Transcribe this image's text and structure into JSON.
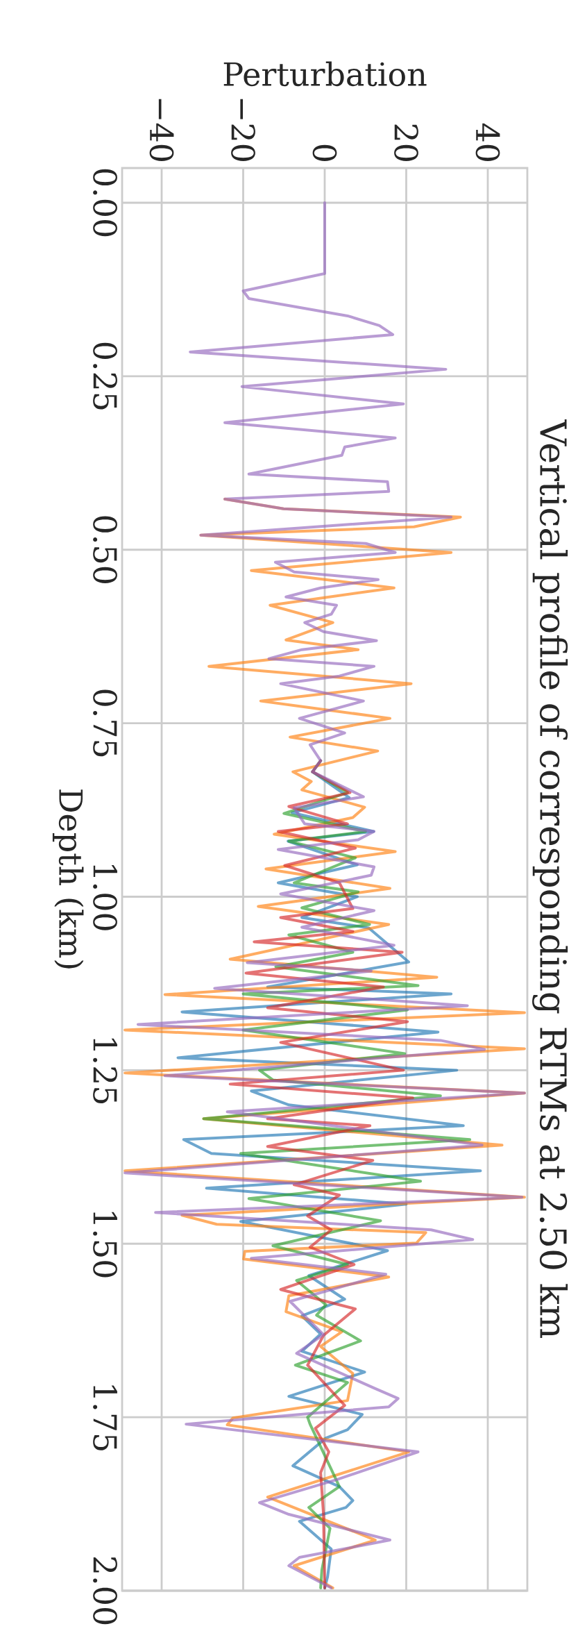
{
  "chart_data": {
    "type": "line",
    "title": "Vertical profile of corresponding RTMs at 2.50 km",
    "xlabel": "Perturbation",
    "ylabel": "Depth (km)",
    "xlim": [
      -49.7,
      49.7
    ],
    "ylim": [
      2.0,
      -0.05
    ],
    "xticks": [
      {
        "value": -40,
        "label": "−40"
      },
      {
        "value": -20,
        "label": "−20"
      },
      {
        "value": 0,
        "label": "0"
      },
      {
        "value": 20,
        "label": "20"
      },
      {
        "value": 40,
        "label": "40"
      }
    ],
    "yticks": [
      {
        "value": 0,
        "label": "0.00"
      },
      {
        "value": 0.25,
        "label": "0.25"
      },
      {
        "value": 0.5,
        "label": "0.50"
      },
      {
        "value": 0.75,
        "label": "0.75"
      },
      {
        "value": 1,
        "label": "1.00"
      },
      {
        "value": 1.25,
        "label": "1.25"
      },
      {
        "value": 1.5,
        "label": "1.50"
      },
      {
        "value": 1.75,
        "label": "1.75"
      },
      {
        "value": 2,
        "label": "2.00"
      }
    ],
    "grid": true,
    "line_style": "solid",
    "marker": "none",
    "series": [
      {
        "color": "#1f77b4",
        "values": [
          null,
          null,
          null,
          null,
          null,
          null,
          null,
          null,
          null,
          null,
          null,
          null,
          null,
          null,
          null,
          null,
          null,
          null,
          null,
          null,
          null,
          null,
          null,
          null,
          null,
          null,
          null,
          null,
          null,
          null,
          null,
          null,
          null,
          null,
          null,
          null,
          null,
          null,
          null,
          null,
          null,
          null,
          null,
          0.804,
          0.82,
          0.857,
          0.879,
          0.906,
          0.92,
          0.954,
          0.98,
          1.0,
          1.03,
          1.045,
          1.094,
          1.13,
          1.14,
          1.166,
          1.195,
          1.232,
          1.25,
          1.28,
          1.3,
          1.33,
          1.35,
          1.37,
          1.395,
          1.42,
          1.443,
          1.468,
          1.51,
          1.546,
          1.58,
          1.604,
          1.63,
          1.655,
          1.685,
          1.72,
          1.746,
          1.768,
          1.78,
          1.82,
          1.85,
          1.87,
          1.88,
          1.9,
          1.94,
          1.98,
          1.996
        ],
        "x": [
          null,
          null,
          null,
          null,
          null,
          null,
          null,
          null,
          null,
          null,
          null,
          null,
          null,
          null,
          null,
          null,
          null,
          null,
          null,
          null,
          null,
          null,
          null,
          null,
          null,
          null,
          null,
          null,
          null,
          null,
          null,
          null,
          null,
          null,
          null,
          null,
          null,
          null,
          null,
          null,
          null,
          null,
          null,
          -1,
          -3,
          6,
          -8,
          12,
          -9,
          8,
          -11.4,
          8,
          -5.6,
          10.8,
          20.6,
          -14,
          31,
          -35,
          27.8,
          -36,
          32.4,
          -18,
          -8.8,
          34,
          -34.6,
          -27.8,
          38.2,
          -29,
          20,
          -20.6,
          15.4,
          -3.9,
          4.9,
          -5.6,
          -1,
          -5.6,
          9.8,
          -8.8,
          9.2,
          5.6,
          0.3,
          -7.8,
          3.6,
          6.9,
          5.2,
          -6.2,
          1.6,
          0.7,
          0
        ]
      },
      {
        "color": "#ff7f0e",
        "values": [
          null,
          null,
          null,
          null,
          null,
          null,
          null,
          null,
          null,
          null,
          null,
          null,
          null,
          null,
          null,
          null,
          null,
          null,
          0.427,
          0.441,
          0.453,
          0.467,
          0.479,
          0.504,
          0.53,
          0.555,
          0.58,
          0.605,
          0.63,
          0.644,
          0.668,
          0.693,
          0.718,
          0.743,
          0.77,
          0.79,
          0.82,
          0.834,
          0.846,
          0.871,
          0.886,
          0.91,
          0.935,
          0.96,
          0.988,
          1.014,
          1.04,
          1.09,
          1.116,
          1.141,
          1.167,
          1.192,
          1.219,
          1.254,
          1.283,
          1.32,
          1.358,
          1.395,
          1.433,
          1.459,
          1.472,
          1.484,
          1.499,
          1.511,
          1.522,
          1.548,
          1.575,
          1.598,
          1.627,
          1.648,
          1.687,
          1.726,
          1.751,
          1.761,
          1.8,
          1.865,
          1.927,
          1.964,
          1.996
        ],
        "x": [
          null,
          null,
          null,
          null,
          null,
          null,
          null,
          null,
          null,
          null,
          null,
          null,
          null,
          null,
          null,
          null,
          null,
          null,
          -24.5,
          -10.1,
          33.3,
          21.9,
          -30.4,
          31,
          -18,
          17,
          -13.4,
          2,
          -9.5,
          8.2,
          -28.4,
          21.2,
          -15.7,
          16,
          -8.5,
          13,
          -7.8,
          -3.3,
          -5.6,
          9.8,
          6.9,
          -12.4,
          17.3,
          -14.4,
          16,
          -16.3,
          15.7,
          -23.2,
          27.5,
          -39.2,
          49,
          -49,
          49,
          -49,
          49,
          -29.7,
          43.5,
          -49,
          49,
          -35,
          -26.5,
          24.8,
          22.5,
          -19.6,
          -19.9,
          15.7,
          -8.8,
          -9.5,
          4.2,
          -1,
          6.9,
          5.6,
          -22.5,
          -23.9,
          20.6,
          -14,
          12.4,
          -7.5,
          2
        ]
      },
      {
        "color": "#2ca02c",
        "values": [
          null,
          null,
          null,
          null,
          null,
          null,
          null,
          null,
          null,
          null,
          null,
          null,
          null,
          null,
          null,
          null,
          null,
          null,
          null,
          null,
          null,
          null,
          null,
          null,
          null,
          null,
          null,
          null,
          null,
          null,
          null,
          null,
          null,
          null,
          null,
          null,
          null,
          null,
          null,
          null,
          null,
          null,
          null,
          0.804,
          0.82,
          0.85,
          0.88,
          0.906,
          0.92,
          0.944,
          0.98,
          0.993,
          1.016,
          1.04,
          1.055,
          1.08,
          1.101,
          1.128,
          1.14,
          1.163,
          1.192,
          1.226,
          1.25,
          1.264,
          1.287,
          1.32,
          1.35,
          1.37,
          1.41,
          1.435,
          1.467,
          1.503,
          1.53,
          1.553,
          1.588,
          1.603,
          1.64,
          1.675,
          1.7,
          1.75,
          1.76,
          1.85,
          1.88,
          1.91,
          1.97,
          1.996
        ],
        "x": [
          null,
          null,
          null,
          null,
          null,
          null,
          null,
          null,
          null,
          null,
          null,
          null,
          null,
          null,
          null,
          null,
          null,
          null,
          null,
          null,
          null,
          null,
          null,
          null,
          null,
          null,
          null,
          null,
          null,
          null,
          null,
          null,
          null,
          null,
          null,
          null,
          null,
          null,
          null,
          null,
          null,
          null,
          null,
          -1,
          -3,
          5.6,
          -10,
          10,
          -8.8,
          7.5,
          -7.5,
          8.2,
          -5.6,
          11,
          -8.8,
          6.9,
          -12,
          22.9,
          -20,
          20.3,
          -20,
          19.6,
          -16,
          -12.7,
          28.4,
          -29.7,
          35.6,
          -20.6,
          23.5,
          -18.6,
          13.7,
          -12.7,
          5.6,
          -6.9,
          0.3,
          -2,
          8.8,
          -7.2,
          5.6,
          -4.2,
          -3.6,
          3.6,
          -3.9,
          1.3,
          -0.7,
          -1
        ]
      },
      {
        "color": "#d62728",
        "values": [
          null,
          null,
          null,
          null,
          null,
          null,
          null,
          null,
          null,
          null,
          null,
          null,
          null,
          null,
          null,
          null,
          null,
          null,
          null,
          null,
          null,
          null,
          null,
          null,
          null,
          null,
          null,
          null,
          null,
          null,
          null,
          null,
          null,
          null,
          null,
          null,
          null,
          null,
          null,
          null,
          null,
          null,
          null,
          0.804,
          0.82,
          0.85,
          0.87,
          0.895,
          0.906,
          0.93,
          0.955,
          0.98,
          1.017,
          1.03,
          1.05,
          1.065,
          1.08,
          1.11,
          1.13,
          1.16,
          1.18,
          1.21,
          1.25,
          1.27,
          1.29,
          1.32,
          1.33,
          1.36,
          1.38,
          1.415,
          1.43,
          1.46,
          1.48,
          1.505,
          1.53,
          1.566,
          1.594,
          1.632,
          1.675,
          1.733,
          1.766,
          1.8,
          1.83,
          1.89,
          1.996
        ],
        "x": [
          null,
          null,
          null,
          null,
          null,
          null,
          null,
          null,
          null,
          null,
          null,
          null,
          null,
          null,
          null,
          null,
          null,
          null,
          null,
          null,
          null,
          null,
          null,
          null,
          null,
          null,
          null,
          null,
          null,
          null,
          null,
          null,
          null,
          null,
          null,
          null,
          null,
          null,
          null,
          null,
          null,
          null,
          null,
          -1,
          -3,
          6.2,
          -8.8,
          5.6,
          -11.4,
          7.5,
          -9.8,
          3.6,
          6.9,
          -10.8,
          6.9,
          -17.3,
          19,
          -19.3,
          14.4,
          -14,
          20.3,
          -10.8,
          19.3,
          -23.2,
          21.6,
          -14,
          11.1,
          -14,
          11.8,
          -7.5,
          3.6,
          -4.2,
          1.6,
          -3.6,
          7.2,
          -10.8,
          7.5,
          -0.3,
          -4.2,
          4.9,
          -2.3,
          1,
          -1,
          -0.3,
          0
        ]
      },
      {
        "color": "#9467bd",
        "values": [
          0,
          0.102,
          0.127,
          0.138,
          0.163,
          0.177,
          0.19,
          0.215,
          0.24,
          0.265,
          0.29,
          0.317,
          0.339,
          0.352,
          0.364,
          0.391,
          0.402,
          0.416,
          0.427,
          0.441,
          0.453,
          0.479,
          0.491,
          0.504,
          0.518,
          0.532,
          0.543,
          0.555,
          0.568,
          0.58,
          0.593,
          0.605,
          0.618,
          0.631,
          0.644,
          0.657,
          0.668,
          0.682,
          0.693,
          0.718,
          0.743,
          0.764,
          0.781,
          0.804,
          0.82,
          0.856,
          0.872,
          0.895,
          0.906,
          0.918,
          0.932,
          0.957,
          0.969,
          0.996,
          1.02,
          1.044,
          1.07,
          1.095,
          1.107,
          1.132,
          1.157,
          1.184,
          1.207,
          1.22,
          1.258,
          1.283,
          1.31,
          1.358,
          1.398,
          1.433,
          1.455,
          1.48,
          1.494,
          1.521,
          1.544,
          1.583,
          1.631,
          1.658,
          1.708,
          1.723,
          1.735,
          1.76,
          1.8,
          1.84,
          1.873,
          1.89,
          1.927,
          1.952,
          1.964,
          1.996
        ],
        "x": [
          0,
          0,
          -20,
          -18.6,
          5.6,
          13.4,
          16.7,
          -33,
          29.7,
          -20.3,
          19.3,
          -24.5,
          17.3,
          4.9,
          4.2,
          -18.6,
          15.4,
          15.7,
          -24.5,
          -10.1,
          31,
          -30.4,
          10.1,
          17.3,
          -12.1,
          -7.5,
          13.1,
          -1,
          -9.5,
          2.9,
          1.6,
          -4.9,
          -0.3,
          12.7,
          -5.6,
          -13.7,
          12.1,
          3.6,
          -10.8,
          9.5,
          -6.2,
          4.9,
          -3.6,
          -1,
          -3,
          9.5,
          -7.5,
          -4.9,
          12.1,
          8.2,
          -11.4,
          12.1,
          11.4,
          -10.8,
          12.1,
          -5.6,
          17,
          -19,
          11.4,
          -27,
          35,
          -45.8,
          28.4,
          39.2,
          -39.2,
          49,
          -23.9,
          38.6,
          -49,
          48.4,
          -41.5,
          26.1,
          36.3,
          -18,
          15,
          -8.5,
          -0.3,
          -6.9,
          12.1,
          18,
          15.7,
          -34,
          22.9,
          2.9,
          -16,
          -8.8,
          16,
          -6.2,
          -8.8,
          1.6
        ]
      }
    ]
  }
}
